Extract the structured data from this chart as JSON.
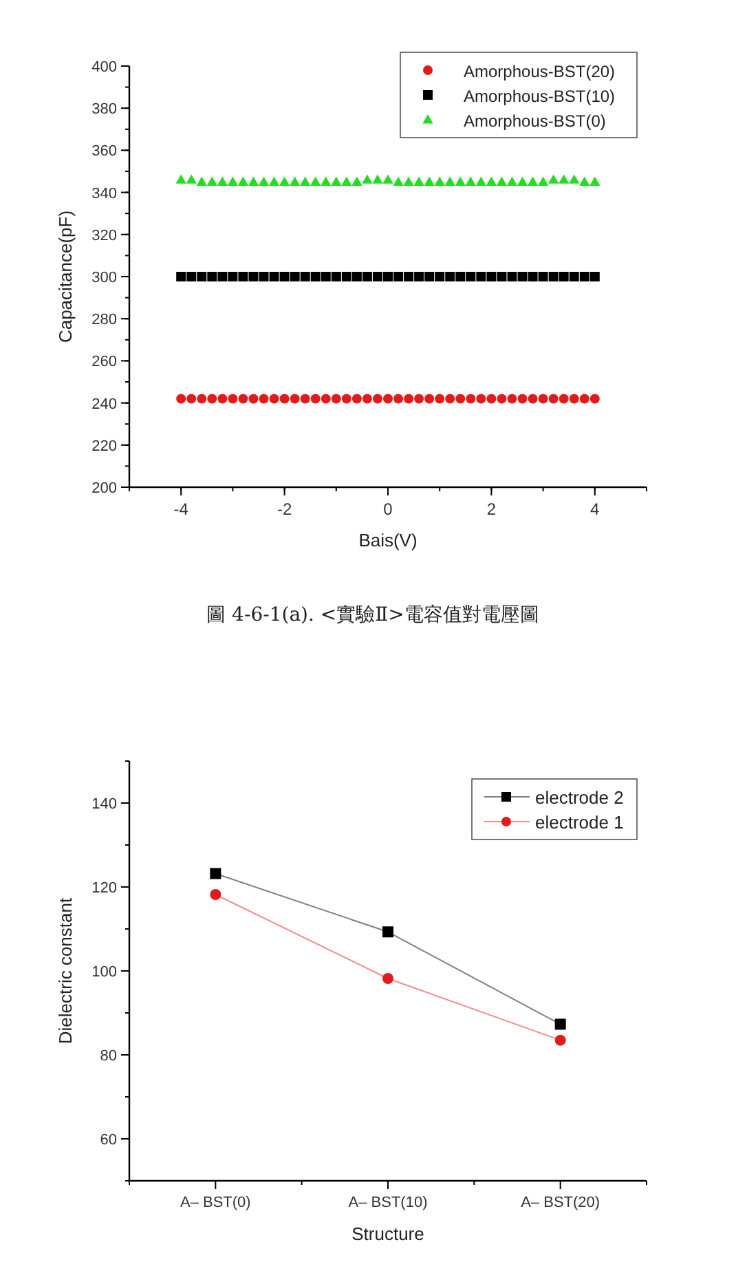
{
  "chart_data": [
    {
      "type": "scatter",
      "xlabel": "Bais(V)",
      "ylabel": "Capacitance(pF)",
      "annotations": [
        "圖 4-6-1(a). <實驗Ⅱ>電容值對電壓圖"
      ],
      "xlim": [
        -5,
        5
      ],
      "xticks": [
        -4,
        -2,
        0,
        2,
        4
      ],
      "ylim": [
        200,
        400
      ],
      "yticks": [
        200,
        220,
        240,
        260,
        280,
        300,
        320,
        340,
        360,
        380,
        400
      ],
      "legend": "top right",
      "grid": false,
      "x": [
        -4,
        -3.8,
        -3.6,
        -3.4,
        -3.2,
        -3,
        -2.8,
        -2.6,
        -2.4,
        -2.2,
        -2,
        -1.8,
        -1.6,
        -1.4,
        -1.2,
        -1,
        -0.8,
        -0.6,
        -0.4,
        -0.2,
        0,
        0.2,
        0.4,
        0.6,
        0.8,
        1,
        1.2,
        1.4,
        1.6,
        1.8,
        2,
        2.2,
        2.4,
        2.6,
        2.8,
        3,
        3.2,
        3.4,
        3.6,
        3.8,
        4
      ],
      "series": [
        {
          "name": "Amorphous-BST(20)",
          "color": "#e31a1c",
          "marker": "circle",
          "values": [
            242,
            242,
            242,
            242,
            242,
            242,
            242,
            242,
            242,
            242,
            242,
            242,
            242,
            242,
            242,
            242,
            242,
            242,
            242,
            242,
            242,
            242,
            242,
            242,
            242,
            242,
            242,
            242,
            242,
            242,
            242,
            242,
            242,
            242,
            242,
            242,
            242,
            242,
            242,
            242,
            242
          ]
        },
        {
          "name": "Amorphous-BST(10)",
          "color": "#000000",
          "marker": "square",
          "values": [
            300,
            300,
            300,
            300,
            300,
            300,
            300,
            300,
            300,
            300,
            300,
            300,
            300,
            300,
            300,
            300,
            300,
            300,
            300,
            300,
            300,
            300,
            300,
            300,
            300,
            300,
            300,
            300,
            300,
            300,
            300,
            300,
            300,
            300,
            300,
            300,
            300,
            300,
            300,
            300,
            300
          ]
        },
        {
          "name": "Amorphous-BST(0)",
          "color": "#22dd22",
          "marker": "triangle",
          "values": [
            346,
            346,
            345,
            345,
            345,
            345,
            345,
            345,
            345,
            345,
            345,
            345,
            345,
            345,
            345,
            345,
            345,
            345,
            346,
            346,
            346,
            345,
            345,
            345,
            345,
            345,
            345,
            345,
            345,
            345,
            345,
            345,
            345,
            345,
            345,
            345,
            346,
            346,
            346,
            345,
            345
          ]
        }
      ]
    },
    {
      "type": "line",
      "xlabel": "Structure",
      "ylabel": "Dielectric constant",
      "categories": [
        "A– BST(0)",
        "A– BST(10)",
        "A– BST(20)"
      ],
      "ylim": [
        50,
        150
      ],
      "yticks": [
        60,
        80,
        100,
        120,
        140
      ],
      "legend": "top right",
      "grid": false,
      "series": [
        {
          "name": "electrode 2",
          "color": "#000000",
          "marker": "square",
          "values": [
            123.2,
            109.3,
            87.3
          ]
        },
        {
          "name": "electrode 1",
          "color": "#e31a1c",
          "marker": "circle",
          "values": [
            118.2,
            98.2,
            83.5
          ]
        }
      ]
    }
  ]
}
